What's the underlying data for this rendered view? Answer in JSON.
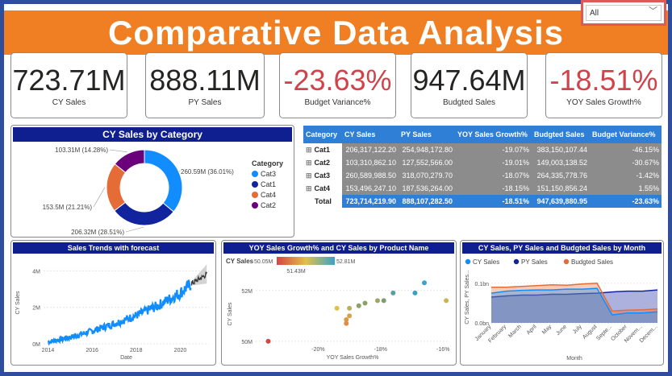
{
  "title": "Comparative Data Analysis",
  "slicer": {
    "value": "All"
  },
  "kpis": [
    {
      "value": "723.71M",
      "label": "CY Sales",
      "negative": false
    },
    {
      "value": "888.11M",
      "label": "PY Sales",
      "negative": false
    },
    {
      "value": "-23.63%",
      "label": "Budget Variance%",
      "negative": true
    },
    {
      "value": "947.64M",
      "label": "Budgted Sales",
      "negative": false
    },
    {
      "value": "-18.51%",
      "label": "YOY Sales Growth%",
      "negative": true
    }
  ],
  "donut": {
    "title": "CY Sales by Category",
    "legend_title": "Category",
    "slices": [
      {
        "name": "Cat3",
        "value": 260.59,
        "label": "260.59M (36.01%)",
        "color": "#118dff"
      },
      {
        "name": "Cat1",
        "value": 206.32,
        "label": "206.32M (28.51%)",
        "color": "#12239e"
      },
      {
        "name": "Cat4",
        "value": 153.5,
        "label": "153.5M (21.21%)",
        "color": "#e66c37"
      },
      {
        "name": "Cat2",
        "value": 103.31,
        "label": "103.31M (14.28%)",
        "color": "#6b007b"
      }
    ]
  },
  "matrix": {
    "headers": [
      "Category",
      "CY Sales",
      "PY Sales",
      "YOY Sales Growth%",
      "Budgted Sales",
      "Budget Variance%"
    ],
    "rows": [
      [
        "Cat1",
        "206,317,122.20",
        "254,948,172.80",
        "-19.07%",
        "383,150,107.44",
        "-46.15%"
      ],
      [
        "Cat2",
        "103,310,862.10",
        "127,552,566.00",
        "-19.01%",
        "149,003,138.52",
        "-30.67%"
      ],
      [
        "Cat3",
        "260,589,988.50",
        "318,070,279.70",
        "-18.07%",
        "264,335,778.76",
        "-1.42%"
      ],
      [
        "Cat4",
        "153,496,247.10",
        "187,536,264.00",
        "-18.15%",
        "151,150,856.24",
        "1.55%"
      ]
    ],
    "total": [
      "Total",
      "723,714,219.90",
      "888,107,282.50",
      "-18.51%",
      "947,639,880.95",
      "-23.63%"
    ],
    "expand_icon": "⊞"
  },
  "trend": {
    "title": "Sales Trends with forecast",
    "xlabel": "Date",
    "ylabel": "CY Sales",
    "xticks": [
      "2014",
      "2016",
      "2018",
      "2020"
    ],
    "yticks": [
      "0M",
      "2M",
      "4M"
    ]
  },
  "scatter": {
    "title": "YOY Sales Growth% and CY Sales by Product Name",
    "legend_label": "CY Sales",
    "scale_min": "50.05M",
    "scale_max": "52.81M",
    "scale_mid": "51.43M",
    "xlabel": "YOY Sales Growth%",
    "ylabel": "CY Sales",
    "xticks": [
      "-20%",
      "-18%",
      "-16%"
    ],
    "yticks": [
      "50M",
      "52M"
    ]
  },
  "area": {
    "title": "CY Sales, PY Sales and Budgted Sales by Month",
    "legend": [
      {
        "name": "CY Sales",
        "color": "#118dff"
      },
      {
        "name": "PY Sales",
        "color": "#12239e"
      },
      {
        "name": "Budgted Sales",
        "color": "#e66c37"
      }
    ],
    "months": [
      "January",
      "February",
      "March",
      "April",
      "May",
      "June",
      "July",
      "August",
      "Septe...",
      "October",
      "Novem...",
      "Decem..."
    ],
    "xlabel": "Month",
    "ylabel": "CY Sales, PY Sales...",
    "yticks": [
      "0.0bn",
      "0.1bn"
    ]
  },
  "chart_data": [
    {
      "type": "pie",
      "title": "CY Sales by Category",
      "categories": [
        "Cat3",
        "Cat1",
        "Cat4",
        "Cat2"
      ],
      "values": [
        260.59,
        206.32,
        153.5,
        103.31
      ]
    },
    {
      "type": "line",
      "title": "Sales Trends with forecast",
      "xlabel": "Date",
      "ylabel": "CY Sales",
      "x": [
        2014,
        2015,
        2016,
        2017,
        2018,
        2019,
        2020,
        2020.5,
        2021.2
      ],
      "values": [
        0.1,
        0.35,
        0.7,
        1.1,
        1.55,
        2.1,
        2.8,
        3.3,
        3.8
      ],
      "unit": "M",
      "ylim": [
        0,
        4.5
      ]
    },
    {
      "type": "scatter",
      "title": "YOY Sales Growth% and CY Sales by Product Name",
      "xlabel": "YOY Sales Growth%",
      "ylabel": "CY Sales",
      "points": [
        {
          "x": -21.6,
          "y": 50.0,
          "color": "#d64541"
        },
        {
          "x": -19.4,
          "y": 51.3,
          "color": "#e0c04a"
        },
        {
          "x": -19.0,
          "y": 51.3,
          "color": "#b9b05a"
        },
        {
          "x": -18.7,
          "y": 51.4,
          "color": "#8aa16a"
        },
        {
          "x": -18.5,
          "y": 51.5,
          "color": "#8aa16a"
        },
        {
          "x": -18.1,
          "y": 51.6,
          "color": "#9aa868"
        },
        {
          "x": -17.9,
          "y": 51.6,
          "color": "#7c9c74"
        },
        {
          "x": -17.6,
          "y": 51.9,
          "color": "#5a9ea0"
        },
        {
          "x": -16.9,
          "y": 51.9,
          "color": "#3b9fbf"
        },
        {
          "x": -16.6,
          "y": 52.3,
          "color": "#3aa3c9"
        },
        {
          "x": -19.0,
          "y": 51.0,
          "color": "#d6a34a"
        },
        {
          "x": -19.1,
          "y": 50.85,
          "color": "#d69a48"
        },
        {
          "x": -19.1,
          "y": 50.7,
          "color": "#e08e45"
        },
        {
          "x": -15.9,
          "y": 51.6,
          "color": "#c9b550"
        }
      ]
    },
    {
      "type": "area",
      "title": "CY Sales, PY Sales and Budgted Sales by Month",
      "categories": [
        "January",
        "February",
        "March",
        "April",
        "May",
        "June",
        "July",
        "August",
        "Septe...",
        "October",
        "Novem...",
        "Decem..."
      ],
      "series": [
        {
          "name": "CY Sales",
          "values": [
            0.075,
            0.08,
            0.082,
            0.083,
            0.083,
            0.085,
            0.085,
            0.087,
            0.02,
            0.025,
            0.025,
            0.028
          ]
        },
        {
          "name": "PY Sales",
          "values": [
            0.065,
            0.068,
            0.07,
            0.07,
            0.072,
            0.072,
            0.074,
            0.075,
            0.078,
            0.08,
            0.08,
            0.083
          ]
        },
        {
          "name": "Budgted Sales",
          "values": [
            0.09,
            0.09,
            0.092,
            0.094,
            0.096,
            0.095,
            0.098,
            0.1,
            0.03,
            0.032,
            0.033,
            0.035
          ]
        }
      ],
      "ylim": [
        0,
        0.13
      ],
      "unit": "bn"
    }
  ]
}
